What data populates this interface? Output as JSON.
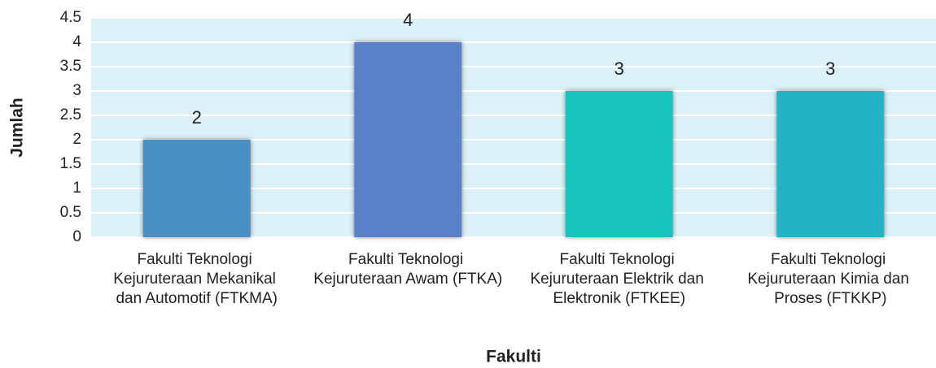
{
  "chart_data": {
    "type": "bar",
    "categories": [
      "Fakulti Teknologi Kejuruteraan Mekanikal dan Automotif (FTKMA)",
      "Fakulti Teknologi Kejuruteraan Awam (FTKA)",
      "Fakulti Teknologi Kejuruteraan Elektrik dan Elektronik (FTKEE)",
      "Fakulti Teknologi Kejuruteraan Kimia dan Proses (FTKKP)"
    ],
    "values": [
      2,
      4,
      3,
      3
    ],
    "colors": [
      "#4a90c4",
      "#5a80c8",
      "#13c3bd",
      "#22b3c4"
    ],
    "x_label": "Fakulti",
    "y_label": "Jumlah",
    "ylim": [
      0,
      4.5
    ],
    "yticks": [
      0,
      0.5,
      1,
      1.5,
      2,
      2.5,
      3,
      3.5,
      4,
      4.5
    ],
    "grid": true
  }
}
